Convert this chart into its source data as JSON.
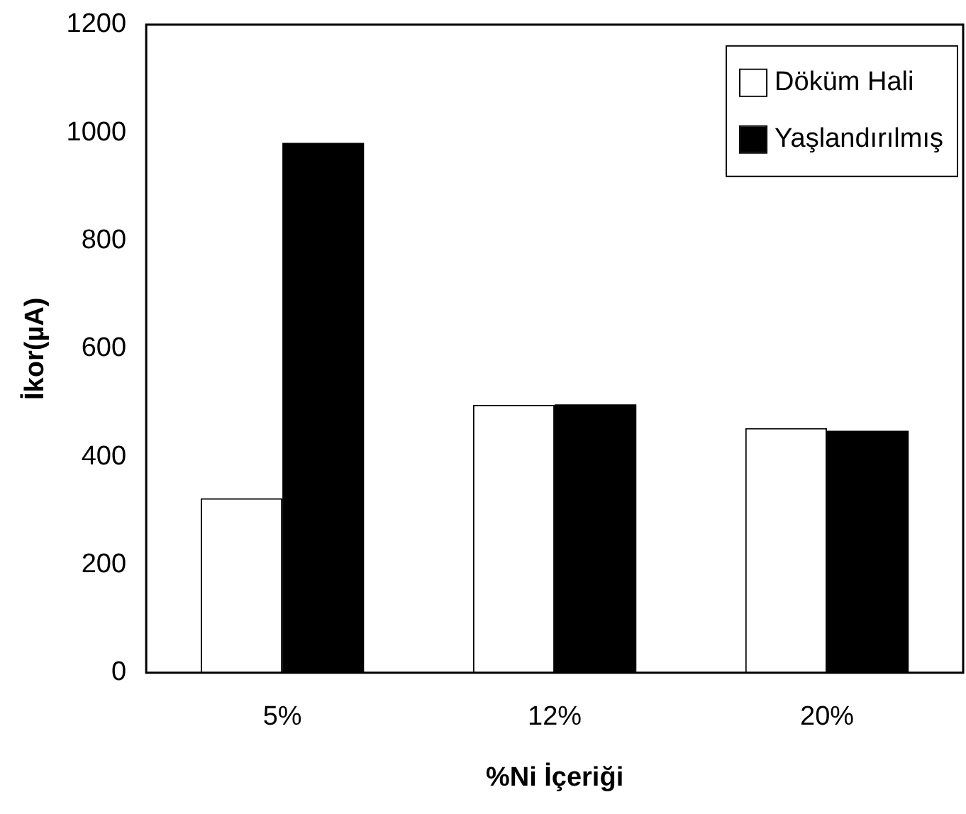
{
  "chart_data": {
    "type": "bar",
    "xlabel": "%Ni İçeriği",
    "ylabel": "İkor(µA)",
    "categories": [
      "5%",
      "12%",
      "20%"
    ],
    "series": [
      {
        "name": "Döküm Hali",
        "color": "#ffffff",
        "values": [
          323,
          496,
          453
        ]
      },
      {
        "name": "Yaşlandırılmış",
        "color": "#000000",
        "values": [
          981,
          497,
          448
        ]
      }
    ],
    "ylim": [
      0,
      1200
    ],
    "yticks": [
      0,
      200,
      400,
      600,
      800,
      1000,
      1200
    ],
    "grid": false,
    "legend": "top right"
  }
}
